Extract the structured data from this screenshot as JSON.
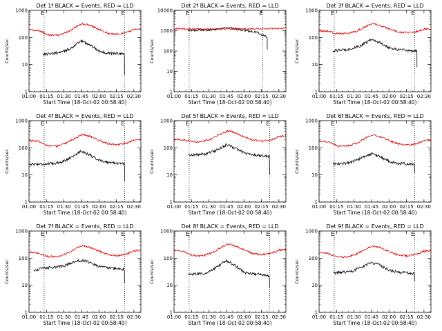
{
  "colors": {
    "events": "#000000",
    "lld": "#e00000",
    "axis": "#000000",
    "background": "#ffffff"
  },
  "chart_data": [
    {
      "type": "line",
      "title": "Det 1f BLACK = Events, RED = LLD",
      "xlabel": "Start Time (18-Oct-02 00:58:40)",
      "ylabel": "Counts/sec",
      "yscale": "log",
      "ylim": [
        1,
        1000
      ],
      "xlim": [
        "01:00",
        "02:36"
      ],
      "x_ticks": [
        "01:00",
        "01:15",
        "01:30",
        "01:45",
        "02:00",
        "02:15",
        "02:30"
      ],
      "y_ticks": [
        "1",
        "10",
        "100",
        "1000"
      ],
      "markers": [
        "01:13",
        "02:22"
      ],
      "marker_label": "E",
      "series": [
        {
          "x": [
            "01:12",
            "01:20",
            "01:28",
            "01:36",
            "01:45",
            "01:52",
            "02:00",
            "02:08",
            "02:16",
            "02:22"
          ],
          "values": [
            24,
            26,
            28,
            40,
            75,
            55,
            32,
            26,
            26,
            25
          ],
          "end_drop": 4
        },
        {
          "x": [
            "01:00",
            "01:08",
            "01:16",
            "01:24",
            "01:32",
            "01:40",
            "01:46",
            "01:52",
            "02:00",
            "02:08",
            "02:16",
            "02:24",
            "02:30",
            "02:36"
          ],
          "values": [
            190,
            185,
            125,
            120,
            150,
            240,
            320,
            290,
            200,
            140,
            130,
            150,
            200,
            210
          ]
        }
      ]
    },
    {
      "type": "line",
      "title": "Det 2f BLACK = Events, RED = LLD",
      "xlabel": "Start Time (18-Oct-02 00:58:40)",
      "ylabel": "Counts/sec",
      "yscale": "log",
      "ylim": [
        1,
        10000
      ],
      "xlim": [
        "01:00",
        "02:36"
      ],
      "x_ticks": [
        "01:00",
        "01:15",
        "01:30",
        "01:45",
        "02:00",
        "02:15",
        "02:30"
      ],
      "y_ticks": [
        "1",
        "10",
        "100",
        "1000",
        "10000"
      ],
      "markers": [
        "01:13",
        "02:16"
      ],
      "marker_label": "E",
      "series": [
        {
          "x": [
            "01:12",
            "01:20",
            "01:30",
            "01:40",
            "01:46",
            "01:52",
            "02:00",
            "02:08",
            "02:12",
            "02:16",
            "02:20"
          ],
          "values": [
            1000,
            1050,
            1100,
            1250,
            1400,
            1250,
            1050,
            900,
            800,
            600,
            500
          ],
          "end_drop": 120
        },
        {
          "x": [
            "01:00",
            "01:15",
            "01:30",
            "01:45",
            "02:00",
            "02:15",
            "02:30",
            "02:36"
          ],
          "values": [
            1250,
            1230,
            1200,
            1250,
            1230,
            1260,
            1300,
            1320
          ]
        }
      ]
    },
    {
      "type": "line",
      "title": "Det 3f BLACK = Events, RED = LLD",
      "xlabel": "Start Time (18-Oct-02 00:58:40)",
      "ylabel": "Counts/sec",
      "yscale": "log",
      "ylim": [
        1,
        1000
      ],
      "xlim": [
        "01:00",
        "02:36"
      ],
      "x_ticks": [
        "01:00",
        "01:15",
        "01:30",
        "01:45",
        "02:00",
        "02:15",
        "02:30"
      ],
      "y_ticks": [
        "1",
        "10",
        "100",
        "1000"
      ],
      "markers": [
        "01:13",
        "02:22"
      ],
      "marker_label": "E",
      "series": [
        {
          "x": [
            "01:12",
            "01:20",
            "01:28",
            "01:36",
            "01:45",
            "01:52",
            "02:00",
            "02:08",
            "02:16",
            "02:24"
          ],
          "values": [
            32,
            35,
            38,
            50,
            85,
            65,
            42,
            35,
            33,
            32
          ],
          "end_drop": 8
        },
        {
          "x": [
            "01:00",
            "01:08",
            "01:16",
            "01:24",
            "01:32",
            "01:40",
            "01:46",
            "01:52",
            "02:00",
            "02:08",
            "02:16",
            "02:24",
            "02:30",
            "02:36"
          ],
          "values": [
            175,
            170,
            135,
            140,
            170,
            250,
            320,
            280,
            210,
            160,
            150,
            165,
            200,
            210
          ]
        }
      ]
    },
    {
      "type": "line",
      "title": "Det 4f BLACK = Events, RED = LLD",
      "xlabel": "Start Time (18-Oct-02 00:58:40)",
      "ylabel": "Counts/sec",
      "yscale": "log",
      "ylim": [
        1,
        1000
      ],
      "xlim": [
        "01:00",
        "02:36"
      ],
      "x_ticks": [
        "01:00",
        "01:15",
        "01:30",
        "01:45",
        "02:00",
        "02:15",
        "02:30"
      ],
      "y_ticks": [
        "1",
        "10",
        "100",
        "1000"
      ],
      "markers": [
        "01:13",
        "02:22"
      ],
      "marker_label": "E",
      "series": [
        {
          "x": [
            "01:00",
            "01:10",
            "01:20",
            "01:30",
            "01:38",
            "01:45",
            "01:52",
            "02:00",
            "02:10",
            "02:20",
            "02:22"
          ],
          "values": [
            25,
            25,
            26,
            32,
            50,
            75,
            55,
            35,
            28,
            27,
            26
          ],
          "end_drop": 6
        },
        {
          "x": [
            "01:00",
            "01:08",
            "01:16",
            "01:24",
            "01:32",
            "01:40",
            "01:46",
            "01:52",
            "02:00",
            "02:08",
            "02:16",
            "02:24",
            "02:30",
            "02:36"
          ],
          "values": [
            180,
            175,
            120,
            115,
            150,
            230,
            310,
            270,
            190,
            140,
            130,
            150,
            190,
            200
          ]
        }
      ]
    },
    {
      "type": "line",
      "title": "Det 5f BLACK = Events, RED = LLD",
      "xlabel": "Start Time (18-Oct-02 00:58:40)",
      "ylabel": "Counts/sec",
      "yscale": "log",
      "ylim": [
        1,
        1000
      ],
      "xlim": [
        "01:00",
        "02:36"
      ],
      "x_ticks": [
        "01:00",
        "01:15",
        "01:30",
        "01:45",
        "02:00",
        "02:15",
        "02:30"
      ],
      "y_ticks": [
        "1",
        "10",
        "100",
        "1000"
      ],
      "markers": [
        "01:13",
        "02:22"
      ],
      "marker_label": "E",
      "series": [
        {
          "x": [
            "01:12",
            "01:20",
            "01:28",
            "01:36",
            "01:45",
            "01:52",
            "02:00",
            "02:08",
            "02:16",
            "02:22"
          ],
          "values": [
            55,
            56,
            60,
            80,
            130,
            100,
            65,
            55,
            50,
            48
          ],
          "end_drop": 10
        },
        {
          "x": [
            "01:00",
            "01:08",
            "01:16",
            "01:24",
            "01:32",
            "01:40",
            "01:46",
            "01:52",
            "02:00",
            "02:08",
            "02:16",
            "02:24",
            "02:30",
            "02:36"
          ],
          "values": [
            210,
            200,
            165,
            165,
            210,
            320,
            420,
            370,
            260,
            190,
            175,
            200,
            260,
            270
          ]
        }
      ]
    },
    {
      "type": "line",
      "title": "Det 6f BLACK = Events, RED = LLD",
      "xlabel": "Start Time (18-Oct-02 00:58:40)",
      "ylabel": "Counts/sec",
      "yscale": "log",
      "ylim": [
        1,
        1000
      ],
      "xlim": [
        "01:00",
        "02:36"
      ],
      "x_ticks": [
        "01:00",
        "01:15",
        "01:30",
        "01:45",
        "02:00",
        "02:15",
        "02:30"
      ],
      "y_ticks": [
        "1",
        "10",
        "100",
        "1000"
      ],
      "markers": [
        "01:13",
        "02:22"
      ],
      "marker_label": "E",
      "series": [
        {
          "x": [
            "01:12",
            "01:20",
            "01:28",
            "01:36",
            "01:45",
            "01:52",
            "02:00",
            "02:08",
            "02:16",
            "02:22"
          ],
          "values": [
            25,
            26,
            30,
            42,
            60,
            48,
            32,
            26,
            26,
            24
          ],
          "end_drop": 12
        },
        {
          "x": [
            "01:00",
            "01:08",
            "01:16",
            "01:24",
            "01:32",
            "01:40",
            "01:46",
            "01:52",
            "02:00",
            "02:08",
            "02:16",
            "02:24",
            "02:30",
            "02:36"
          ],
          "values": [
            175,
            165,
            115,
            115,
            145,
            230,
            300,
            260,
            185,
            140,
            125,
            145,
            190,
            195
          ]
        }
      ]
    },
    {
      "type": "line",
      "title": "Det 7f BLACK = Events, RED = LLD",
      "xlabel": "Start Time (18-Oct-02 00:58:40)",
      "ylabel": "Counts/sec",
      "yscale": "log",
      "ylim": [
        1,
        1000
      ],
      "xlim": [
        "01:00",
        "02:36"
      ],
      "x_ticks": [
        "01:00",
        "01:15",
        "01:30",
        "01:45",
        "02:00",
        "02:15",
        "02:30"
      ],
      "y_ticks": [
        "1",
        "10",
        "100",
        "1000"
      ],
      "markers": [
        "01:13",
        "02:22"
      ],
      "marker_label": "E",
      "series": [
        {
          "x": [
            "01:04",
            "01:12",
            "01:20",
            "01:30",
            "01:38",
            "01:45",
            "01:52",
            "02:00",
            "02:10",
            "02:20",
            "02:22"
          ],
          "values": [
            35,
            42,
            45,
            52,
            70,
            85,
            70,
            50,
            42,
            40,
            38
          ],
          "end_drop": 12
        },
        {
          "x": [
            "01:00",
            "01:08",
            "01:16",
            "01:24",
            "01:32",
            "01:40",
            "01:46",
            "01:52",
            "02:00",
            "02:08",
            "02:16",
            "02:24",
            "02:30",
            "02:36"
          ],
          "values": [
            165,
            155,
            115,
            115,
            145,
            220,
            290,
            250,
            180,
            135,
            125,
            145,
            185,
            195
          ]
        }
      ]
    },
    {
      "type": "line",
      "title": "Det 8f BLACK = Events, RED = LLD",
      "xlabel": "Start Time (18-Oct-02 00:58:40)",
      "ylabel": "Counts/sec",
      "yscale": "log",
      "ylim": [
        1,
        1000
      ],
      "xlim": [
        "01:00",
        "02:36"
      ],
      "x_ticks": [
        "01:00",
        "01:15",
        "01:30",
        "01:45",
        "02:00",
        "02:15",
        "02:30"
      ],
      "y_ticks": [
        "1",
        "10",
        "100",
        "1000"
      ],
      "markers": [
        "01:13",
        "02:22"
      ],
      "marker_label": "E",
      "series": [
        {
          "x": [
            "01:12",
            "01:20",
            "01:28",
            "01:36",
            "01:45",
            "01:52",
            "02:00",
            "02:08",
            "02:16",
            "02:22"
          ],
          "values": [
            25,
            26,
            28,
            45,
            80,
            55,
            30,
            26,
            25,
            20
          ],
          "end_drop": 8
        },
        {
          "x": [
            "01:00",
            "01:08",
            "01:16",
            "01:24",
            "01:32",
            "01:40",
            "01:46",
            "01:52",
            "02:00",
            "02:08",
            "02:16",
            "02:24",
            "02:30",
            "02:36"
          ],
          "values": [
            190,
            180,
            125,
            120,
            155,
            240,
            340,
            290,
            200,
            145,
            135,
            155,
            200,
            210
          ]
        }
      ]
    },
    {
      "type": "line",
      "title": "Det 9f BLACK = Events, RED = LLD",
      "xlabel": "Start Time (18-Oct-02 00:58:40)",
      "ylabel": "Counts/sec",
      "yscale": "log",
      "ylim": [
        1,
        1000
      ],
      "xlim": [
        "01:00",
        "02:36"
      ],
      "x_ticks": [
        "01:00",
        "01:15",
        "01:30",
        "01:45",
        "02:00",
        "02:15",
        "02:30"
      ],
      "y_ticks": [
        "1",
        "10",
        "100",
        "1000"
      ],
      "markers": [
        "01:13",
        "02:22"
      ],
      "marker_label": "E",
      "series": [
        {
          "x": [
            "01:12",
            "01:20",
            "01:28",
            "01:36",
            "01:45",
            "01:52",
            "02:00",
            "02:08",
            "02:16",
            "02:22"
          ],
          "values": [
            28,
            30,
            33,
            45,
            70,
            55,
            36,
            30,
            28,
            26
          ],
          "end_drop": 14
        },
        {
          "x": [
            "01:00",
            "01:08",
            "01:16",
            "01:24",
            "01:32",
            "01:40",
            "01:46",
            "01:52",
            "02:00",
            "02:08",
            "02:16",
            "02:24",
            "02:30",
            "02:36"
          ],
          "values": [
            160,
            150,
            110,
            110,
            140,
            210,
            280,
            245,
            175,
            130,
            120,
            140,
            180,
            190
          ]
        }
      ]
    }
  ]
}
